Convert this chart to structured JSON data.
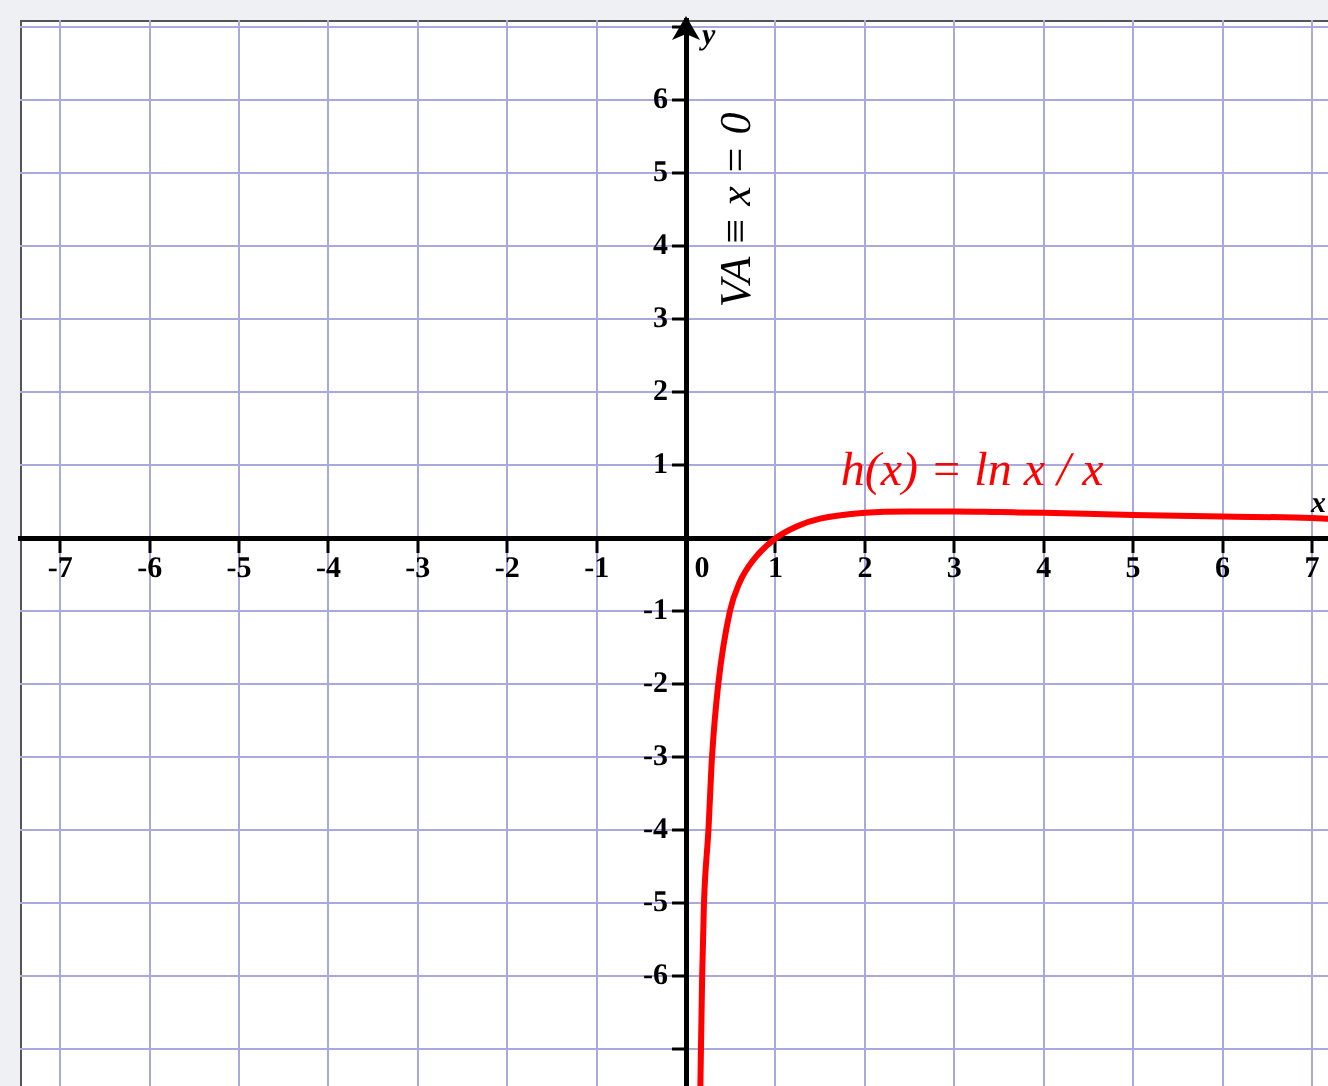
{
  "chart_data": {
    "type": "line",
    "xlabel": "x",
    "ylabel": "y",
    "x": [
      0.16,
      0.18,
      0.2,
      0.25,
      0.29,
      0.36,
      0.49,
      0.6,
      0.75,
      1,
      1.25,
      1.5,
      2,
      2.5,
      2.72,
      3,
      3.5,
      4,
      5,
      6,
      7,
      7.18
    ],
    "series": [
      {
        "name": "h(x) = ln x / x",
        "color": "#ff0000",
        "values": [
          -7.5,
          -6,
          -5,
          -4,
          -3,
          -2,
          -1,
          -0.6,
          -0.3,
          0,
          0.17,
          0.27,
          0.35,
          0.37,
          0.37,
          0.37,
          0.36,
          0.35,
          0.32,
          0.3,
          0.28,
          0.27
        ]
      }
    ],
    "xlim": [
      -7.45,
      7.18
    ],
    "ylim": [
      -7.5,
      7.1
    ],
    "xticks": [
      -7,
      -6,
      -5,
      -4,
      -3,
      -2,
      -1,
      0,
      1,
      2,
      3,
      4,
      5,
      6,
      7
    ],
    "yticks": [
      {
        "value": -7,
        "label": null
      },
      -6,
      -5,
      -4,
      -3,
      -2,
      -1,
      {
        "value": 0,
        "label": null
      },
      1,
      2,
      3,
      4,
      5,
      6,
      {
        "value": 7,
        "label": null
      }
    ],
    "grid": true,
    "marker": "none",
    "line_style": "solid",
    "legend": false,
    "annotations": [
      "VA ≡ x = 0"
    ]
  }
}
